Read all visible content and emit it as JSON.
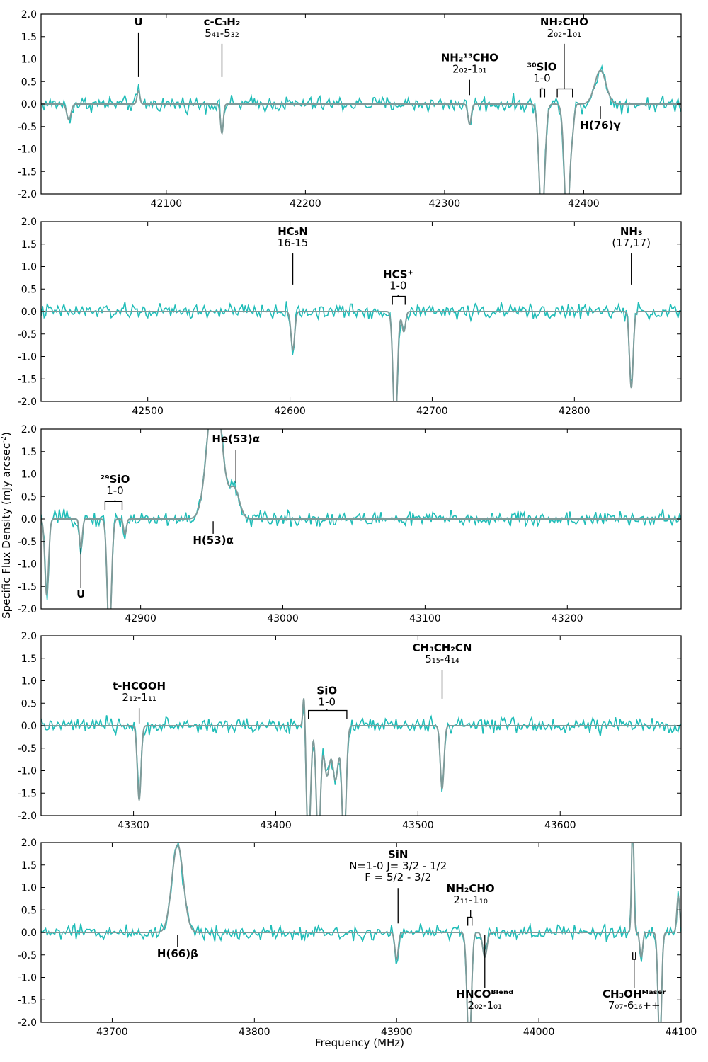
{
  "figure": {
    "ylabel": "Specific Flux Density (mJy arcsec$^{-2}$)",
    "xlabel": "Frequency (MHz)",
    "colors": {
      "data": "#20bdb8",
      "model": "#7f9a99"
    }
  },
  "chart_data": [
    {
      "type": "line",
      "xlim": [
        42010,
        42470
      ],
      "ylim": [
        -2.0,
        2.0
      ],
      "xticks": [
        42100,
        42200,
        42300,
        42400
      ],
      "yticks": [
        -2.0,
        -1.5,
        -1.0,
        -0.5,
        0.0,
        0.5,
        1.0,
        1.5,
        2.0
      ],
      "baseline": 0.0,
      "features": [
        {
          "x": 42030,
          "amp": -0.35,
          "width": 1.5
        },
        {
          "x": 42080,
          "amp": 0.3,
          "width": 1.0
        },
        {
          "x": 42140,
          "amp": -0.65,
          "width": 1.0
        },
        {
          "x": 42318,
          "amp": -0.45,
          "width": 1.2
        },
        {
          "x": 42370,
          "amp": -2.6,
          "width": 2.0
        },
        {
          "x": 42388,
          "amp": -2.6,
          "width": 2.0
        },
        {
          "x": 42392,
          "amp": -0.4,
          "width": 1.2
        },
        {
          "x": 42412,
          "amp": 0.75,
          "width": 4.0
        }
      ],
      "annotations": [
        {
          "text": [
            "U"
          ],
          "x": 42080,
          "at_y": 0.6,
          "label_y": 1.75,
          "dir": "up"
        },
        {
          "text": [
            "c-C₃H₂",
            "5₄₁-5₃₂"
          ],
          "x": 42140,
          "at_y": 0.6,
          "label_y": 1.75,
          "dir": "up"
        },
        {
          "text": [
            "NH₂¹³CHO",
            "2₀₂-1₀₁"
          ],
          "x": 42318,
          "at_y": 0.2,
          "label_y": 0.95,
          "dir": "up"
        },
        {
          "text": [
            "³⁰SiO",
            "1-0"
          ],
          "x": 42370,
          "at_y": 0.15,
          "label_y": 0.75,
          "dir": "up",
          "bracket": [
            42369,
            42372
          ]
        },
        {
          "text": [
            "NH₂CHO",
            "2₀₂-1₀₁"
          ],
          "x": 42386,
          "at_y": 0.15,
          "label_y": 1.75,
          "dir": "up",
          "bracket": [
            42381,
            42392
          ]
        },
        {
          "text": [
            "H(76)γ"
          ],
          "x": 42412,
          "at_y": -0.05,
          "label_y": -0.55,
          "dir": "down"
        }
      ]
    },
    {
      "type": "line",
      "xlim": [
        42425,
        42875
      ],
      "ylim": [
        -2.0,
        2.0
      ],
      "xticks": [
        42500,
        42600,
        42700,
        42800
      ],
      "yticks": [
        -2.0,
        -1.5,
        -1.0,
        -0.5,
        0.0,
        0.5,
        1.0,
        1.5,
        2.0
      ],
      "baseline": 0.0,
      "features": [
        {
          "x": 42602,
          "amp": -0.85,
          "width": 1.3
        },
        {
          "x": 42674,
          "amp": -2.6,
          "width": 1.5
        },
        {
          "x": 42680,
          "amp": -0.45,
          "width": 1.2
        },
        {
          "x": 42840,
          "amp": -1.7,
          "width": 1.3
        }
      ],
      "annotations": [
        {
          "text": [
            "HC₅N",
            "16-15"
          ],
          "x": 42602,
          "at_y": 0.6,
          "label_y": 1.7,
          "dir": "up"
        },
        {
          "text": [
            "HCS⁺",
            "1-0"
          ],
          "x": 42676,
          "at_y": 0.15,
          "label_y": 0.75,
          "dir": "up",
          "bracket": [
            42672,
            42681
          ]
        },
        {
          "text": [
            "NH₃",
            "(17,17)"
          ],
          "x": 42840,
          "at_y": 0.6,
          "label_y": 1.7,
          "dir": "up"
        }
      ]
    },
    {
      "type": "line",
      "xlim": [
        42830,
        43280
      ],
      "ylim": [
        -2.0,
        2.0
      ],
      "xticks": [
        42900,
        43000,
        43100,
        43200
      ],
      "yticks": [
        -2.0,
        -1.5,
        -1.0,
        -0.5,
        0.0,
        0.5,
        1.0,
        1.5,
        2.0
      ],
      "baseline": 0.0,
      "features": [
        {
          "x": 42834,
          "amp": -1.7,
          "width": 1.3
        },
        {
          "x": 42858,
          "amp": -0.65,
          "width": 1.0
        },
        {
          "x": 42878,
          "amp": -2.6,
          "width": 1.5
        },
        {
          "x": 42889,
          "amp": -0.35,
          "width": 1.0
        },
        {
          "x": 42952,
          "amp": 3.0,
          "width": 5.0
        },
        {
          "x": 42966,
          "amp": 0.65,
          "width": 3.5
        }
      ],
      "annotations": [
        {
          "text": [
            "²⁹SiO",
            "1-0"
          ],
          "x": 42882,
          "at_y": 0.2,
          "label_y": 0.8,
          "dir": "up",
          "bracket": [
            42875,
            42887
          ]
        },
        {
          "text": [
            "U"
          ],
          "x": 42858,
          "at_y": -0.65,
          "label_y": -1.75,
          "dir": "down"
        },
        {
          "text": [
            "H(53)α"
          ],
          "x": 42951,
          "at_y": -0.05,
          "label_y": -0.55,
          "dir": "down"
        },
        {
          "text": [
            "He(53)α"
          ],
          "x": 42967,
          "at_y": 0.8,
          "label_y": 1.7,
          "dir": "up"
        }
      ]
    },
    {
      "type": "line",
      "xlim": [
        43235,
        43685
      ],
      "ylim": [
        -2.0,
        2.0
      ],
      "xticks": [
        43300,
        43400,
        43500,
        43600
      ],
      "yticks": [
        -2.0,
        -1.5,
        -1.0,
        -0.5,
        0.0,
        0.5,
        1.0,
        1.5,
        2.0
      ],
      "baseline": 0.0,
      "features": [
        {
          "x": 43304,
          "amp": -1.65,
          "width": 1.3
        },
        {
          "x": 43420,
          "amp": 0.9,
          "width": 0.8
        },
        {
          "x": 43423,
          "amp": -2.6,
          "width": 1.5
        },
        {
          "x": 43430,
          "amp": -2.6,
          "width": 1.5
        },
        {
          "x": 43436,
          "amp": -1.1,
          "width": 2.0
        },
        {
          "x": 43442,
          "amp": -1.2,
          "width": 2.0
        },
        {
          "x": 43448,
          "amp": -2.6,
          "width": 1.5
        },
        {
          "x": 43517,
          "amp": -1.4,
          "width": 1.3
        }
      ],
      "annotations": [
        {
          "text": [
            "t-HCOOH",
            "2₁₂-1₁₁"
          ],
          "x": 43304,
          "at_y": 0.05,
          "label_y": 0.8,
          "dir": "up"
        },
        {
          "text": [
            "SiO",
            "1-0"
          ],
          "x": 43436,
          "at_y": 0.15,
          "label_y": 0.7,
          "dir": "up",
          "bracket": [
            43423,
            43450
          ]
        },
        {
          "text": [
            "CH₃CH₂CN",
            "5₁₅-4₁₄"
          ],
          "x": 43517,
          "at_y": 0.6,
          "label_y": 1.65,
          "dir": "up"
        }
      ]
    },
    {
      "type": "line",
      "xlim": [
        43650,
        44100
      ],
      "ylim": [
        -2.0,
        2.0
      ],
      "xticks": [
        43700,
        43800,
        43900,
        44000,
        44100
      ],
      "yticks": [
        -2.0,
        -1.5,
        -1.0,
        -0.5,
        0.0,
        0.5,
        1.0,
        1.5,
        2.0
      ],
      "baseline": 0.0,
      "features": [
        {
          "x": 43746,
          "amp": 1.95,
          "width": 4.0
        },
        {
          "x": 43900,
          "amp": -0.6,
          "width": 1.2
        },
        {
          "x": 43951,
          "amp": -2.6,
          "width": 1.5
        },
        {
          "x": 43962,
          "amp": -0.55,
          "width": 1.5
        },
        {
          "x": 44066,
          "amp": 2.6,
          "width": 0.8
        },
        {
          "x": 44072,
          "amp": -0.55,
          "width": 1.0
        },
        {
          "x": 44085,
          "amp": -2.6,
          "width": 1.2
        },
        {
          "x": 44098,
          "amp": 0.8,
          "width": 1.0
        }
      ],
      "annotations": [
        {
          "text": [
            "H(66)β"
          ],
          "x": 43746,
          "at_y": -0.05,
          "label_y": -0.55,
          "dir": "down"
        },
        {
          "text": [
            "SiN",
            "N=1-0 J= 3/2 - 1/2",
            "F = 5/2 - 3/2"
          ],
          "x": 43901,
          "at_y": 0.2,
          "label_y": 1.65,
          "dir": "up"
        },
        {
          "text": [
            "NH₂CHO",
            "2₁₁-1₁₀"
          ],
          "x": 43952,
          "at_y": 0.15,
          "label_y": 0.9,
          "dir": "up",
          "bracket": [
            43950,
            43953
          ]
        },
        {
          "text": [
            "HNCOᴮˡᵉⁿᵈ",
            "2₀₂-1₀₁"
          ],
          "x": 43962,
          "at_y": -0.05,
          "label_y": -1.45,
          "dir": "down"
        },
        {
          "text": [
            "CH₃OHᴹᵃˢᵉʳ",
            "7₀₇-6₁₆++"
          ],
          "x": 44067,
          "at_y": -0.6,
          "label_y": -1.45,
          "dir": "down",
          "bracket": [
            44066,
            44068
          ]
        }
      ]
    }
  ]
}
